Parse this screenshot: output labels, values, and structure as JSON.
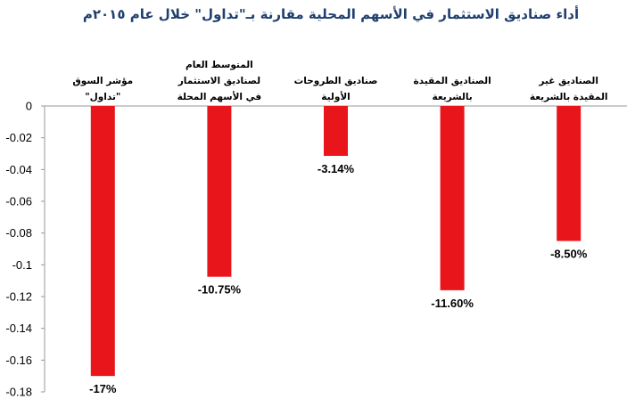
{
  "chart_data": {
    "type": "bar",
    "title": "أداء صناديق الاستثمار في الأسهم المحلية مقارنة بـ\"تداول\" خلال عام ٢٠١٥م",
    "categories": [
      [
        "مؤشر السوق",
        "\"تداول\""
      ],
      [
        "المتوسط العام",
        "لصناديق الاستثمار",
        "في الأسهم المحلة"
      ],
      [
        "صناديق الطروحات",
        "الأولية"
      ],
      [
        "الصناديق المقيدة",
        "بالشريعة"
      ],
      [
        "الصناديق غير",
        "المقيدة بالشريعة"
      ]
    ],
    "values": [
      -0.17,
      -0.1075,
      -0.0314,
      -0.116,
      -0.085
    ],
    "data_labels": [
      "-17%",
      "-10.75%",
      "-3.14%",
      "-11.60%",
      "-8.50%"
    ],
    "ylim": [
      -0.18,
      0
    ],
    "yticks": [
      0,
      -0.02,
      -0.04,
      -0.06,
      -0.08,
      -0.1,
      -0.12,
      -0.14,
      -0.16,
      -0.18
    ],
    "ytick_labels": [
      "0",
      "-0.02",
      "-0.04",
      "-0.06",
      "-0.08",
      "-0.1",
      "-0.12",
      "-0.14",
      "-0.16",
      "-0.18"
    ],
    "bar_color": "#e8151b",
    "grid": false,
    "legend": "none"
  }
}
